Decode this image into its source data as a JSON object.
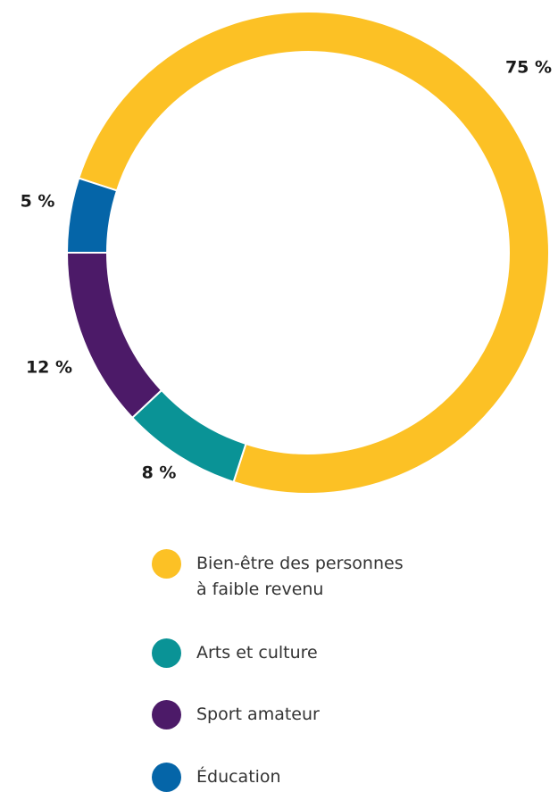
{
  "chart_data": {
    "type": "pie",
    "categories": [
      "Bien-être des personnes\nà faible revenu",
      "Arts et culture",
      "Sport amateur",
      "Éducation"
    ],
    "values": [
      75,
      8,
      12,
      5
    ],
    "value_labels": [
      "75 %",
      "8 %",
      "12 %",
      "5 %"
    ],
    "colors": [
      "#fcc125",
      "#0a9396",
      "#4c1a68",
      "#0565a8"
    ]
  }
}
